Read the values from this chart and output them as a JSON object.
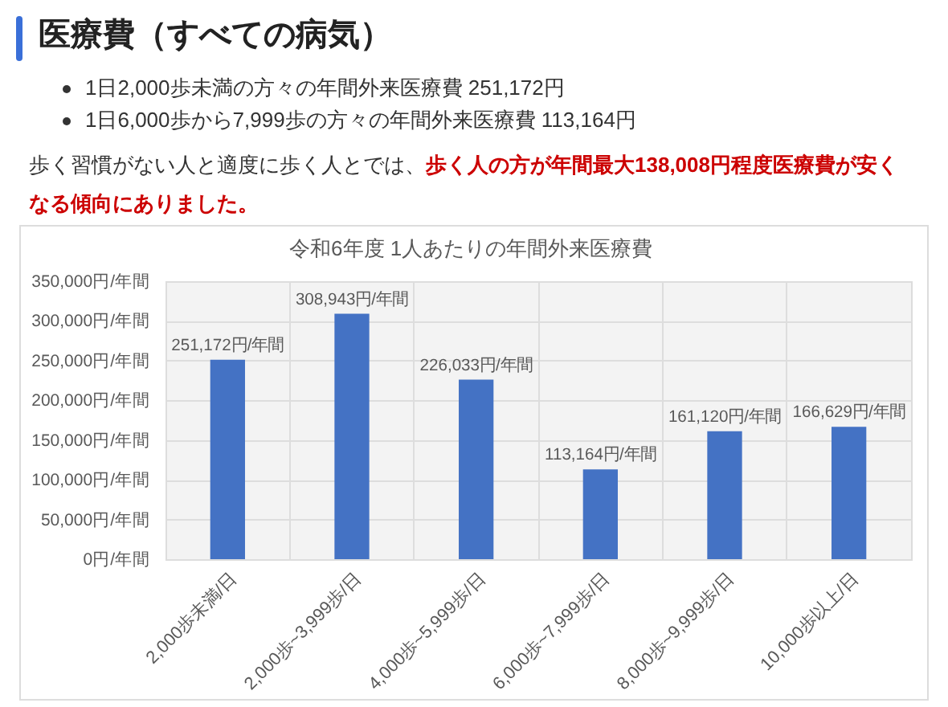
{
  "chart_data": {
    "type": "bar",
    "title": "医療費（すべての病気）",
    "subtitle": "令和6年度 1人あたりの年間外来医療費",
    "annotations": [
      "1日2,000歩未満の方々の年間外来医療費 251,172円",
      "1日6,000歩から7,999歩の方々の年間外来医療費 113,164円",
      "歩く習慣がない人と適度に歩く人とでは、",
      "歩く人の方が年間最大138,008円程度医療費が安く",
      "なる傾向にありました。"
    ],
    "categories": [
      "2,000歩未満/日",
      "2,000歩~3,999歩/日",
      "4,000歩~5,999歩/日",
      "6,000歩~7,999歩/日",
      "8,000歩~9,999歩/日",
      "10,000歩以上/日"
    ],
    "values": [
      251172,
      308943,
      226033,
      113164,
      161120,
      166629
    ],
    "value_labels": [
      "251,172円/年間",
      "308,943円/年間",
      "226,033円/年間",
      "113,164円/年間",
      "161,120円/年間",
      "166,629円/年間"
    ],
    "color": "#4472c4",
    "ylim": [
      0,
      350000
    ],
    "yticks": [
      {
        "value": 0,
        "label": "0円/年間"
      },
      {
        "value": 50000,
        "label": "50,000円/年間"
      },
      {
        "value": 100000,
        "label": "100,000円/年間"
      },
      {
        "value": 150000,
        "label": "150,000円/年間"
      },
      {
        "value": 200000,
        "label": "200,000円/年間"
      },
      {
        "value": 250000,
        "label": "250,000円/年間"
      },
      {
        "value": 300000,
        "label": "300,000円/年間"
      },
      {
        "value": 350000,
        "label": "350,000円/年間"
      }
    ],
    "grid": true
  }
}
